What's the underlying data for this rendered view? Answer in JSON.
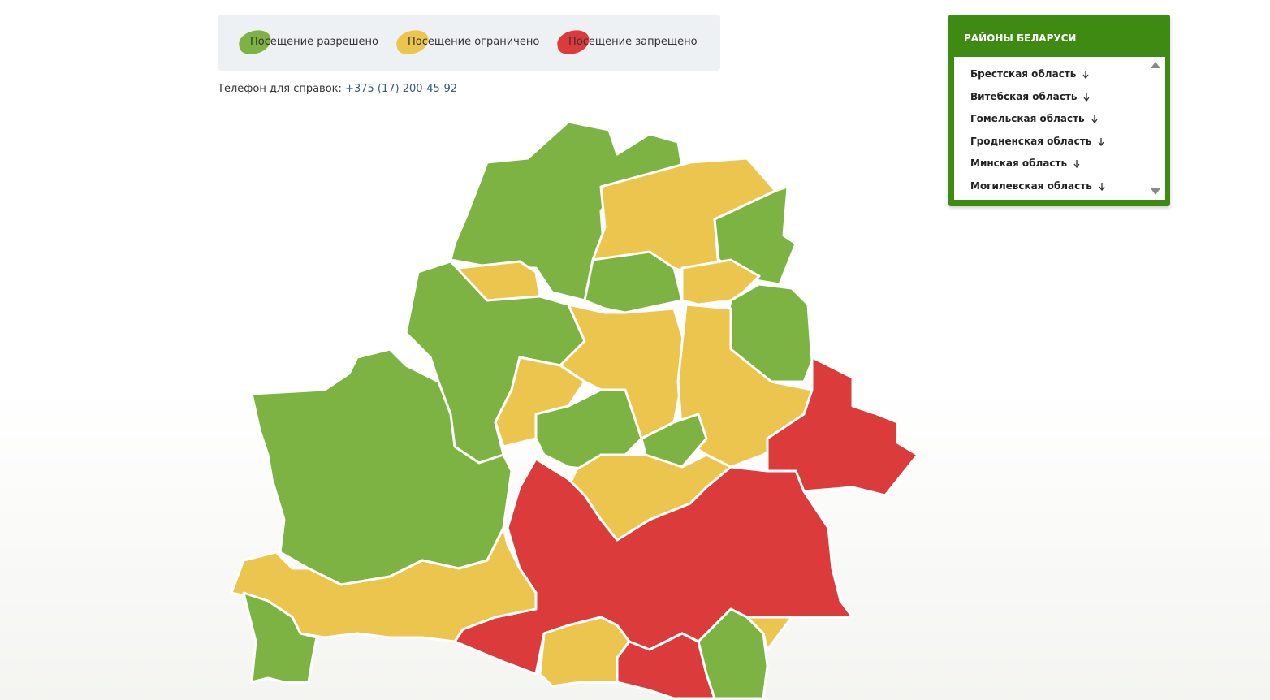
{
  "legend": [
    {
      "label": "Посещение разрешено",
      "color": "#7cb342"
    },
    {
      "label": "Посещение ограничено",
      "color": "#ecc54e"
    },
    {
      "label": "Посещение запрещено",
      "color": "#dc3b3b"
    }
  ],
  "phone": {
    "label": "Телефон для справок:",
    "number": "+375 (17) 200-45-92"
  },
  "panel": {
    "title": "РАЙОНЫ БЕЛАРУСИ",
    "regions": [
      "Брестская область",
      "Витебская область",
      "Гомельская область",
      "Гродненская область",
      "Минская область",
      "Могилевская область"
    ]
  }
}
